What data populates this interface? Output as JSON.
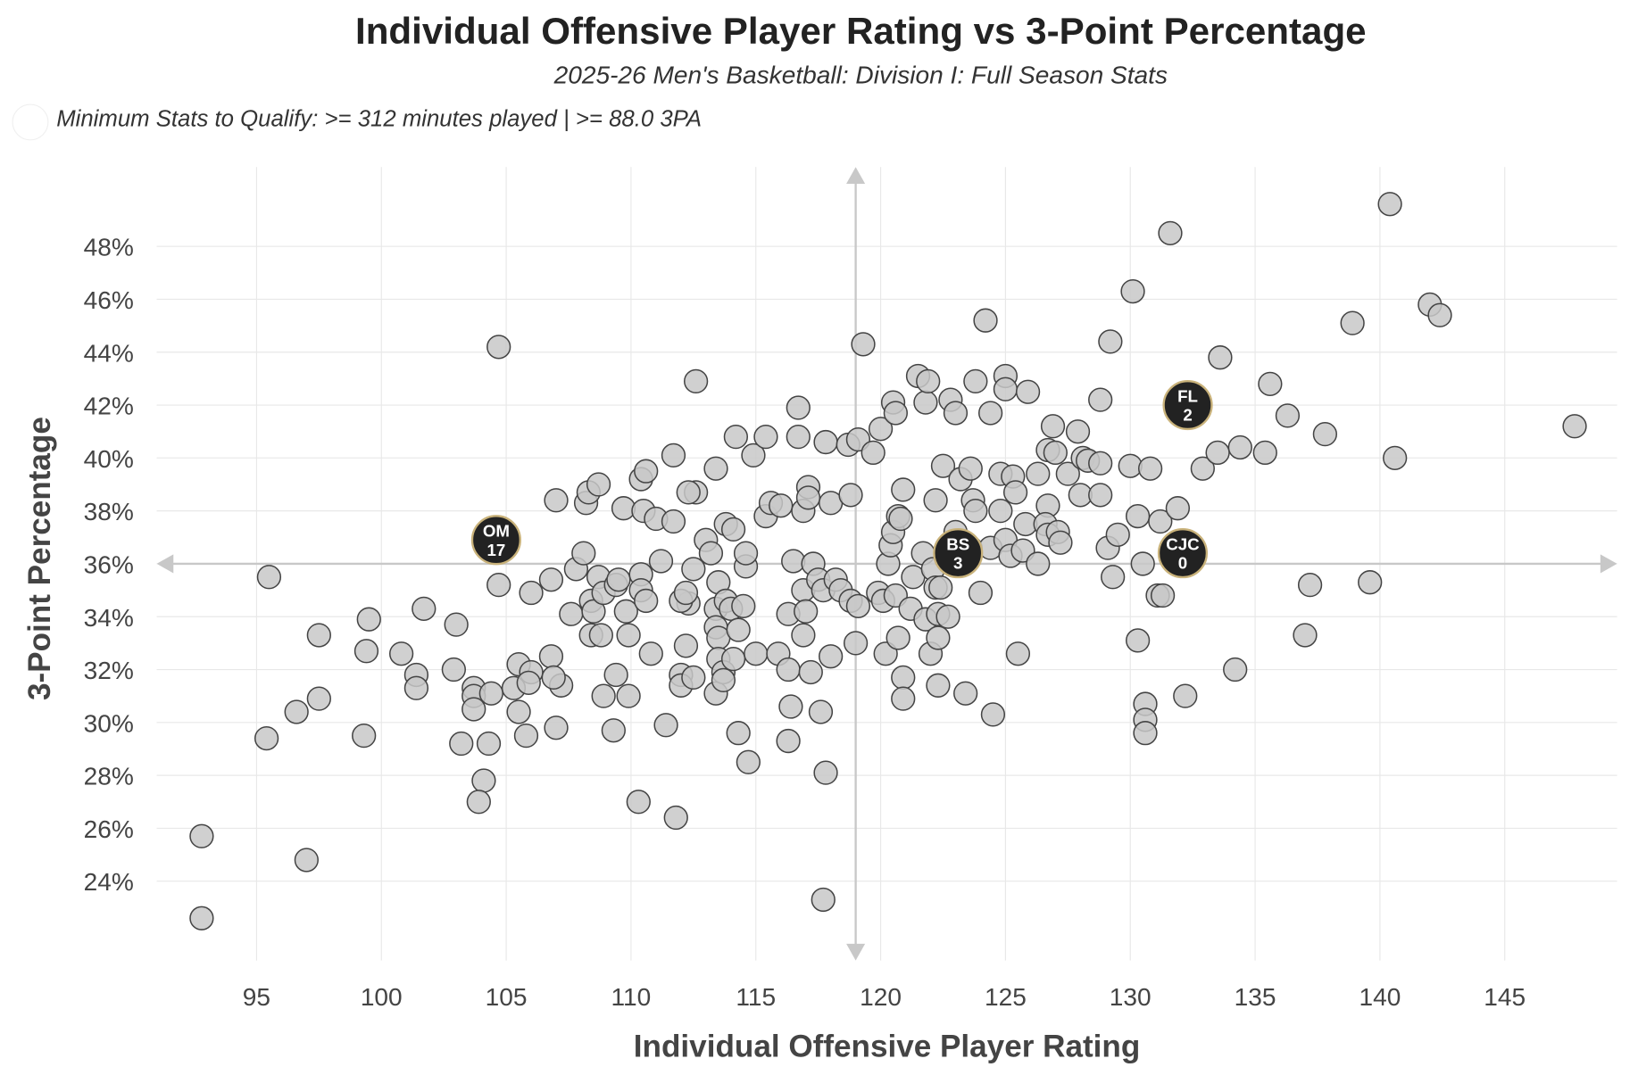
{
  "chart_data": {
    "type": "scatter",
    "title": "Individual Offensive Player Rating vs 3-Point Percentage",
    "subtitle": "2025-26 Men's Basketball: Division I: Full Season Stats",
    "note": "Minimum Stats to Qualify: >= 312 minutes played | >= 88.0 3PA",
    "xlabel": "Individual Offensive Player Rating",
    "ylabel": "3-Point Percentage",
    "xlim": [
      91,
      149.5
    ],
    "ylim": [
      21,
      51
    ],
    "xticks": [
      95,
      100,
      105,
      110,
      115,
      120,
      125,
      130,
      135,
      140,
      145
    ],
    "yticks": [
      24,
      26,
      28,
      30,
      32,
      34,
      36,
      38,
      40,
      42,
      44,
      46,
      48
    ],
    "ytick_suffix": "%",
    "grid": true,
    "reference_lines": {
      "x": 119.0,
      "y": 36.0
    },
    "highlighted": [
      {
        "label1": "OM",
        "label2": "17",
        "x": 104.6,
        "y": 36.9
      },
      {
        "label1": "BS",
        "label2": "3",
        "x": 123.1,
        "y": 36.4
      },
      {
        "label1": "FL",
        "label2": "2",
        "x": 132.3,
        "y": 42.0
      },
      {
        "label1": "CJC",
        "label2": "0",
        "x": 132.1,
        "y": 36.4
      }
    ],
    "points": [
      [
        92.8,
        22.6
      ],
      [
        92.8,
        25.7
      ],
      [
        97.0,
        24.8
      ],
      [
        95.4,
        29.4
      ],
      [
        95.5,
        35.5
      ],
      [
        96.6,
        30.4
      ],
      [
        97.5,
        30.9
      ],
      [
        97.5,
        33.3
      ],
      [
        99.3,
        29.5
      ],
      [
        99.5,
        33.9
      ],
      [
        99.4,
        32.7
      ],
      [
        100.8,
        32.6
      ],
      [
        101.4,
        31.8
      ],
      [
        101.4,
        31.3
      ],
      [
        101.7,
        34.3
      ],
      [
        103.0,
        33.7
      ],
      [
        102.9,
        32.0
      ],
      [
        103.2,
        29.2
      ],
      [
        103.7,
        31.3
      ],
      [
        103.7,
        31.0
      ],
      [
        103.7,
        30.5
      ],
      [
        104.1,
        27.8
      ],
      [
        103.9,
        27.0
      ],
      [
        104.3,
        29.2
      ],
      [
        104.4,
        31.1
      ],
      [
        104.7,
        44.2
      ],
      [
        104.7,
        35.2
      ],
      [
        105.5,
        32.2
      ],
      [
        105.3,
        31.3
      ],
      [
        105.5,
        30.4
      ],
      [
        105.8,
        29.5
      ],
      [
        106.0,
        31.9
      ],
      [
        106.0,
        34.9
      ],
      [
        105.9,
        31.5
      ],
      [
        106.8,
        32.5
      ],
      [
        106.8,
        35.4
      ],
      [
        107.0,
        38.4
      ],
      [
        107.0,
        29.8
      ],
      [
        107.2,
        31.4
      ],
      [
        106.9,
        31.7
      ],
      [
        107.6,
        34.1
      ],
      [
        107.8,
        35.8
      ],
      [
        108.1,
        36.4
      ],
      [
        108.2,
        38.3
      ],
      [
        108.3,
        38.7
      ],
      [
        108.7,
        39.0
      ],
      [
        108.4,
        34.6
      ],
      [
        108.5,
        34.2
      ],
      [
        108.4,
        33.3
      ],
      [
        108.7,
        35.5
      ],
      [
        108.8,
        33.3
      ],
      [
        108.9,
        31.0
      ],
      [
        108.9,
        34.9
      ],
      [
        109.4,
        35.2
      ],
      [
        109.4,
        31.8
      ],
      [
        109.3,
        29.7
      ],
      [
        109.5,
        35.4
      ],
      [
        109.7,
        38.1
      ],
      [
        109.8,
        34.2
      ],
      [
        109.9,
        33.3
      ],
      [
        109.9,
        31.0
      ],
      [
        110.4,
        35.6
      ],
      [
        110.4,
        35.0
      ],
      [
        110.3,
        27.0
      ],
      [
        110.4,
        39.2
      ],
      [
        110.6,
        39.5
      ],
      [
        110.5,
        38.0
      ],
      [
        110.6,
        34.6
      ],
      [
        110.8,
        32.6
      ],
      [
        111.0,
        37.7
      ],
      [
        111.2,
        36.1
      ],
      [
        111.4,
        29.9
      ],
      [
        111.7,
        40.1
      ],
      [
        111.7,
        37.6
      ],
      [
        111.8,
        26.4
      ],
      [
        112.0,
        31.8
      ],
      [
        112.0,
        31.4
      ],
      [
        112.2,
        32.9
      ],
      [
        112.3,
        34.5
      ],
      [
        112.0,
        34.6
      ],
      [
        112.2,
        34.9
      ],
      [
        112.5,
        35.8
      ],
      [
        112.6,
        38.7
      ],
      [
        112.3,
        38.7
      ],
      [
        112.6,
        42.9
      ],
      [
        112.5,
        31.7
      ],
      [
        113.0,
        36.9
      ],
      [
        113.2,
        36.4
      ],
      [
        113.4,
        39.6
      ],
      [
        113.4,
        34.3
      ],
      [
        113.5,
        35.3
      ],
      [
        113.4,
        33.6
      ],
      [
        113.5,
        33.2
      ],
      [
        113.5,
        32.4
      ],
      [
        113.4,
        31.1
      ],
      [
        113.7,
        31.9
      ],
      [
        113.7,
        31.6
      ],
      [
        113.8,
        37.5
      ],
      [
        113.8,
        34.6
      ],
      [
        114.0,
        34.3
      ],
      [
        114.2,
        40.8
      ],
      [
        114.1,
        37.3
      ],
      [
        114.3,
        33.5
      ],
      [
        114.1,
        32.4
      ],
      [
        114.3,
        29.6
      ],
      [
        114.5,
        34.4
      ],
      [
        114.6,
        35.9
      ],
      [
        114.6,
        36.4
      ],
      [
        114.7,
        28.5
      ],
      [
        114.9,
        40.1
      ],
      [
        115.0,
        32.6
      ],
      [
        115.4,
        40.8
      ],
      [
        115.4,
        37.8
      ],
      [
        115.6,
        38.3
      ],
      [
        115.9,
        32.6
      ],
      [
        116.0,
        38.2
      ],
      [
        116.3,
        34.1
      ],
      [
        116.3,
        32.0
      ],
      [
        116.3,
        29.3
      ],
      [
        116.4,
        30.6
      ],
      [
        116.5,
        36.1
      ],
      [
        116.7,
        41.9
      ],
      [
        116.7,
        40.8
      ],
      [
        116.9,
        33.3
      ],
      [
        116.9,
        35.0
      ],
      [
        116.9,
        38.0
      ],
      [
        117.0,
        34.2
      ],
      [
        117.1,
        38.9
      ],
      [
        117.1,
        38.5
      ],
      [
        117.2,
        31.9
      ],
      [
        117.3,
        36.0
      ],
      [
        117.6,
        30.4
      ],
      [
        117.5,
        35.4
      ],
      [
        117.7,
        35.0
      ],
      [
        117.8,
        40.6
      ],
      [
        117.8,
        28.1
      ],
      [
        117.7,
        23.3
      ],
      [
        118.0,
        32.5
      ],
      [
        118.0,
        38.3
      ],
      [
        118.2,
        35.4
      ],
      [
        118.4,
        35.0
      ],
      [
        118.7,
        40.5
      ],
      [
        118.8,
        38.6
      ],
      [
        118.8,
        34.6
      ],
      [
        119.0,
        33.0
      ],
      [
        119.1,
        40.7
      ],
      [
        119.1,
        34.4
      ],
      [
        119.3,
        44.3
      ],
      [
        119.7,
        40.2
      ],
      [
        119.9,
        34.9
      ],
      [
        120.0,
        41.1
      ],
      [
        120.1,
        34.6
      ],
      [
        120.2,
        32.6
      ],
      [
        120.3,
        36.0
      ],
      [
        120.4,
        36.7
      ],
      [
        120.5,
        37.2
      ],
      [
        120.5,
        42.1
      ],
      [
        120.6,
        34.8
      ],
      [
        120.6,
        41.7
      ],
      [
        120.7,
        33.2
      ],
      [
        120.7,
        37.8
      ],
      [
        120.8,
        37.7
      ],
      [
        120.9,
        31.7
      ],
      [
        120.9,
        30.9
      ],
      [
        120.9,
        38.8
      ],
      [
        121.2,
        34.3
      ],
      [
        121.3,
        35.5
      ],
      [
        121.5,
        43.1
      ],
      [
        121.7,
        36.4
      ],
      [
        121.8,
        33.9
      ],
      [
        121.8,
        42.1
      ],
      [
        121.9,
        42.9
      ],
      [
        122.0,
        32.6
      ],
      [
        122.1,
        35.8
      ],
      [
        122.2,
        38.4
      ],
      [
        122.2,
        35.1
      ],
      [
        122.3,
        34.1
      ],
      [
        122.4,
        35.1
      ],
      [
        122.3,
        31.4
      ],
      [
        122.3,
        33.2
      ],
      [
        122.5,
        39.7
      ],
      [
        122.7,
        34.0
      ],
      [
        122.8,
        42.2
      ],
      [
        123.0,
        41.7
      ],
      [
        123.0,
        37.2
      ],
      [
        123.2,
        39.2
      ],
      [
        123.4,
        31.1
      ],
      [
        123.6,
        39.6
      ],
      [
        123.7,
        38.4
      ],
      [
        123.6,
        36.6
      ],
      [
        123.8,
        42.9
      ],
      [
        123.8,
        38.0
      ],
      [
        124.0,
        34.9
      ],
      [
        124.2,
        45.2
      ],
      [
        124.4,
        41.7
      ],
      [
        124.5,
        30.3
      ],
      [
        124.4,
        36.6
      ],
      [
        124.8,
        38.0
      ],
      [
        124.8,
        39.4
      ],
      [
        125.0,
        43.1
      ],
      [
        125.0,
        42.6
      ],
      [
        125.0,
        36.9
      ],
      [
        125.2,
        36.3
      ],
      [
        125.3,
        39.3
      ],
      [
        125.4,
        38.7
      ],
      [
        125.5,
        32.6
      ],
      [
        125.7,
        36.5
      ],
      [
        125.8,
        37.5
      ],
      [
        125.9,
        42.5
      ],
      [
        126.3,
        39.4
      ],
      [
        126.3,
        36.0
      ],
      [
        126.7,
        38.2
      ],
      [
        126.6,
        37.5
      ],
      [
        126.7,
        40.3
      ],
      [
        126.7,
        37.1
      ],
      [
        126.9,
        41.2
      ],
      [
        127.0,
        40.2
      ],
      [
        127.1,
        37.2
      ],
      [
        127.2,
        36.8
      ],
      [
        127.5,
        39.4
      ],
      [
        127.9,
        41.0
      ],
      [
        128.0,
        38.6
      ],
      [
        128.1,
        40.0
      ],
      [
        128.3,
        39.9
      ],
      [
        128.8,
        38.6
      ],
      [
        128.8,
        42.2
      ],
      [
        128.8,
        39.8
      ],
      [
        129.1,
        36.6
      ],
      [
        129.2,
        44.4
      ],
      [
        129.3,
        35.5
      ],
      [
        129.5,
        37.1
      ],
      [
        130.0,
        39.7
      ],
      [
        130.1,
        46.3
      ],
      [
        130.3,
        33.1
      ],
      [
        130.3,
        37.8
      ],
      [
        130.5,
        36.0
      ],
      [
        130.6,
        30.7
      ],
      [
        130.6,
        30.1
      ],
      [
        130.6,
        29.6
      ],
      [
        130.8,
        39.6
      ],
      [
        131.1,
        34.8
      ],
      [
        131.2,
        37.6
      ],
      [
        131.3,
        34.8
      ],
      [
        131.6,
        48.5
      ],
      [
        131.9,
        38.1
      ],
      [
        132.2,
        31.0
      ],
      [
        132.9,
        39.6
      ],
      [
        133.5,
        40.2
      ],
      [
        133.6,
        43.8
      ],
      [
        134.2,
        32.0
      ],
      [
        134.4,
        40.4
      ],
      [
        135.4,
        40.2
      ],
      [
        135.6,
        42.8
      ],
      [
        136.3,
        41.6
      ],
      [
        137.0,
        33.3
      ],
      [
        137.2,
        35.2
      ],
      [
        137.8,
        40.9
      ],
      [
        138.9,
        45.1
      ],
      [
        139.6,
        35.3
      ],
      [
        140.4,
        49.6
      ],
      [
        140.6,
        40.0
      ],
      [
        142.0,
        45.8
      ],
      [
        142.4,
        45.4
      ],
      [
        147.8,
        41.2
      ]
    ]
  }
}
